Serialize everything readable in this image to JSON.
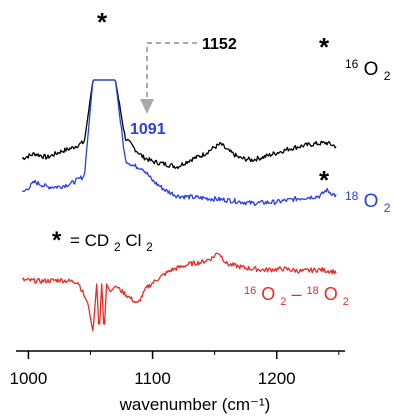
{
  "chart_data": {
    "type": "line",
    "xlabel": "wavenumber (cm⁻¹)",
    "xlim": [
      990,
      1255
    ],
    "xticks": [
      1000,
      1100,
      1200
    ],
    "tick_labels": [
      "1000",
      "1100",
      "1200"
    ],
    "series": [
      {
        "name": "¹⁶O₂",
        "color": "#000000",
        "x": [
          995,
          1005,
          1015,
          1025,
          1035,
          1045,
          1052,
          1058,
          1064,
          1070,
          1078,
          1085,
          1092,
          1100,
          1110,
          1120,
          1130,
          1140,
          1150,
          1155,
          1160,
          1170,
          1180,
          1190,
          1200,
          1210,
          1220,
          1230,
          1240,
          1248
        ],
        "y": [
          1.04,
          1.16,
          1.06,
          1.2,
          1.3,
          1.45,
          3.0,
          3.0,
          3.0,
          3.0,
          1.55,
          1.3,
          1.08,
          0.96,
          0.9,
          0.83,
          1.0,
          1.12,
          1.32,
          1.4,
          1.25,
          1.05,
          1.0,
          1.08,
          1.18,
          1.28,
          1.35,
          1.4,
          1.43,
          1.34
        ]
      },
      {
        "name": "¹⁸O₂",
        "color": "#2b3fe0",
        "x": [
          995,
          1005,
          1015,
          1025,
          1035,
          1045,
          1052,
          1058,
          1064,
          1070,
          1078,
          1085,
          1092,
          1100,
          1110,
          1120,
          1140,
          1160,
          1180,
          1200,
          1220,
          1235,
          1240,
          1248
        ],
        "y": [
          0.17,
          0.45,
          0.33,
          0.33,
          0.42,
          0.6,
          3.0,
          3.0,
          3.0,
          3.0,
          1.0,
          0.85,
          0.8,
          0.48,
          0.25,
          0.1,
          0.05,
          0.0,
          -0.08,
          -0.05,
          0.05,
          0.1,
          0.25,
          0.1
        ]
      },
      {
        "name": "¹⁶O₂–¹⁸O₂",
        "color": "#ee2a24",
        "x": [
          995,
          1010,
          1025,
          1040,
          1048,
          1052,
          1055,
          1057,
          1059,
          1061,
          1063,
          1066,
          1070,
          1080,
          1088,
          1095,
          1105,
          1115,
          1130,
          1140,
          1148,
          1153,
          1160,
          1175,
          1190,
          1205,
          1220,
          1235,
          1248
        ],
        "y": [
          -2.0,
          -2.03,
          -2.0,
          -2.05,
          -2.6,
          -3.3,
          -2.1,
          -3.35,
          -2.1,
          -3.35,
          -2.1,
          -2.3,
          -2.15,
          -2.4,
          -2.6,
          -2.2,
          -1.95,
          -1.75,
          -1.6,
          -1.55,
          -1.45,
          -1.3,
          -1.6,
          -1.7,
          -1.75,
          -1.72,
          -1.78,
          -1.74,
          -1.8
        ]
      }
    ],
    "annotations": {
      "star_top": "*",
      "peak_1152": "1152",
      "peak_1091": "1091",
      "star_black": "*",
      "star_blue": "*",
      "solvent_star": "*",
      "solvent_eq": "= CD",
      "solvent_sub1": "2",
      "solvent_cl": "Cl",
      "solvent_sub2": "2"
    },
    "series_labels": {
      "black": {
        "sup": "16",
        "main": "O",
        "sub": "2"
      },
      "blue": {
        "sup": "18",
        "main": "O",
        "sub": "2"
      },
      "red": {
        "sup1": "16",
        "main1": "O",
        "sub1": "2",
        "dash": "–",
        "sup2": "18",
        "main2": "O",
        "sub2": "2"
      }
    },
    "colors": {
      "black": "#000000",
      "blue": "#2b3fe0",
      "red": "#ee2a24",
      "arrow": "#a9a9a9"
    }
  }
}
